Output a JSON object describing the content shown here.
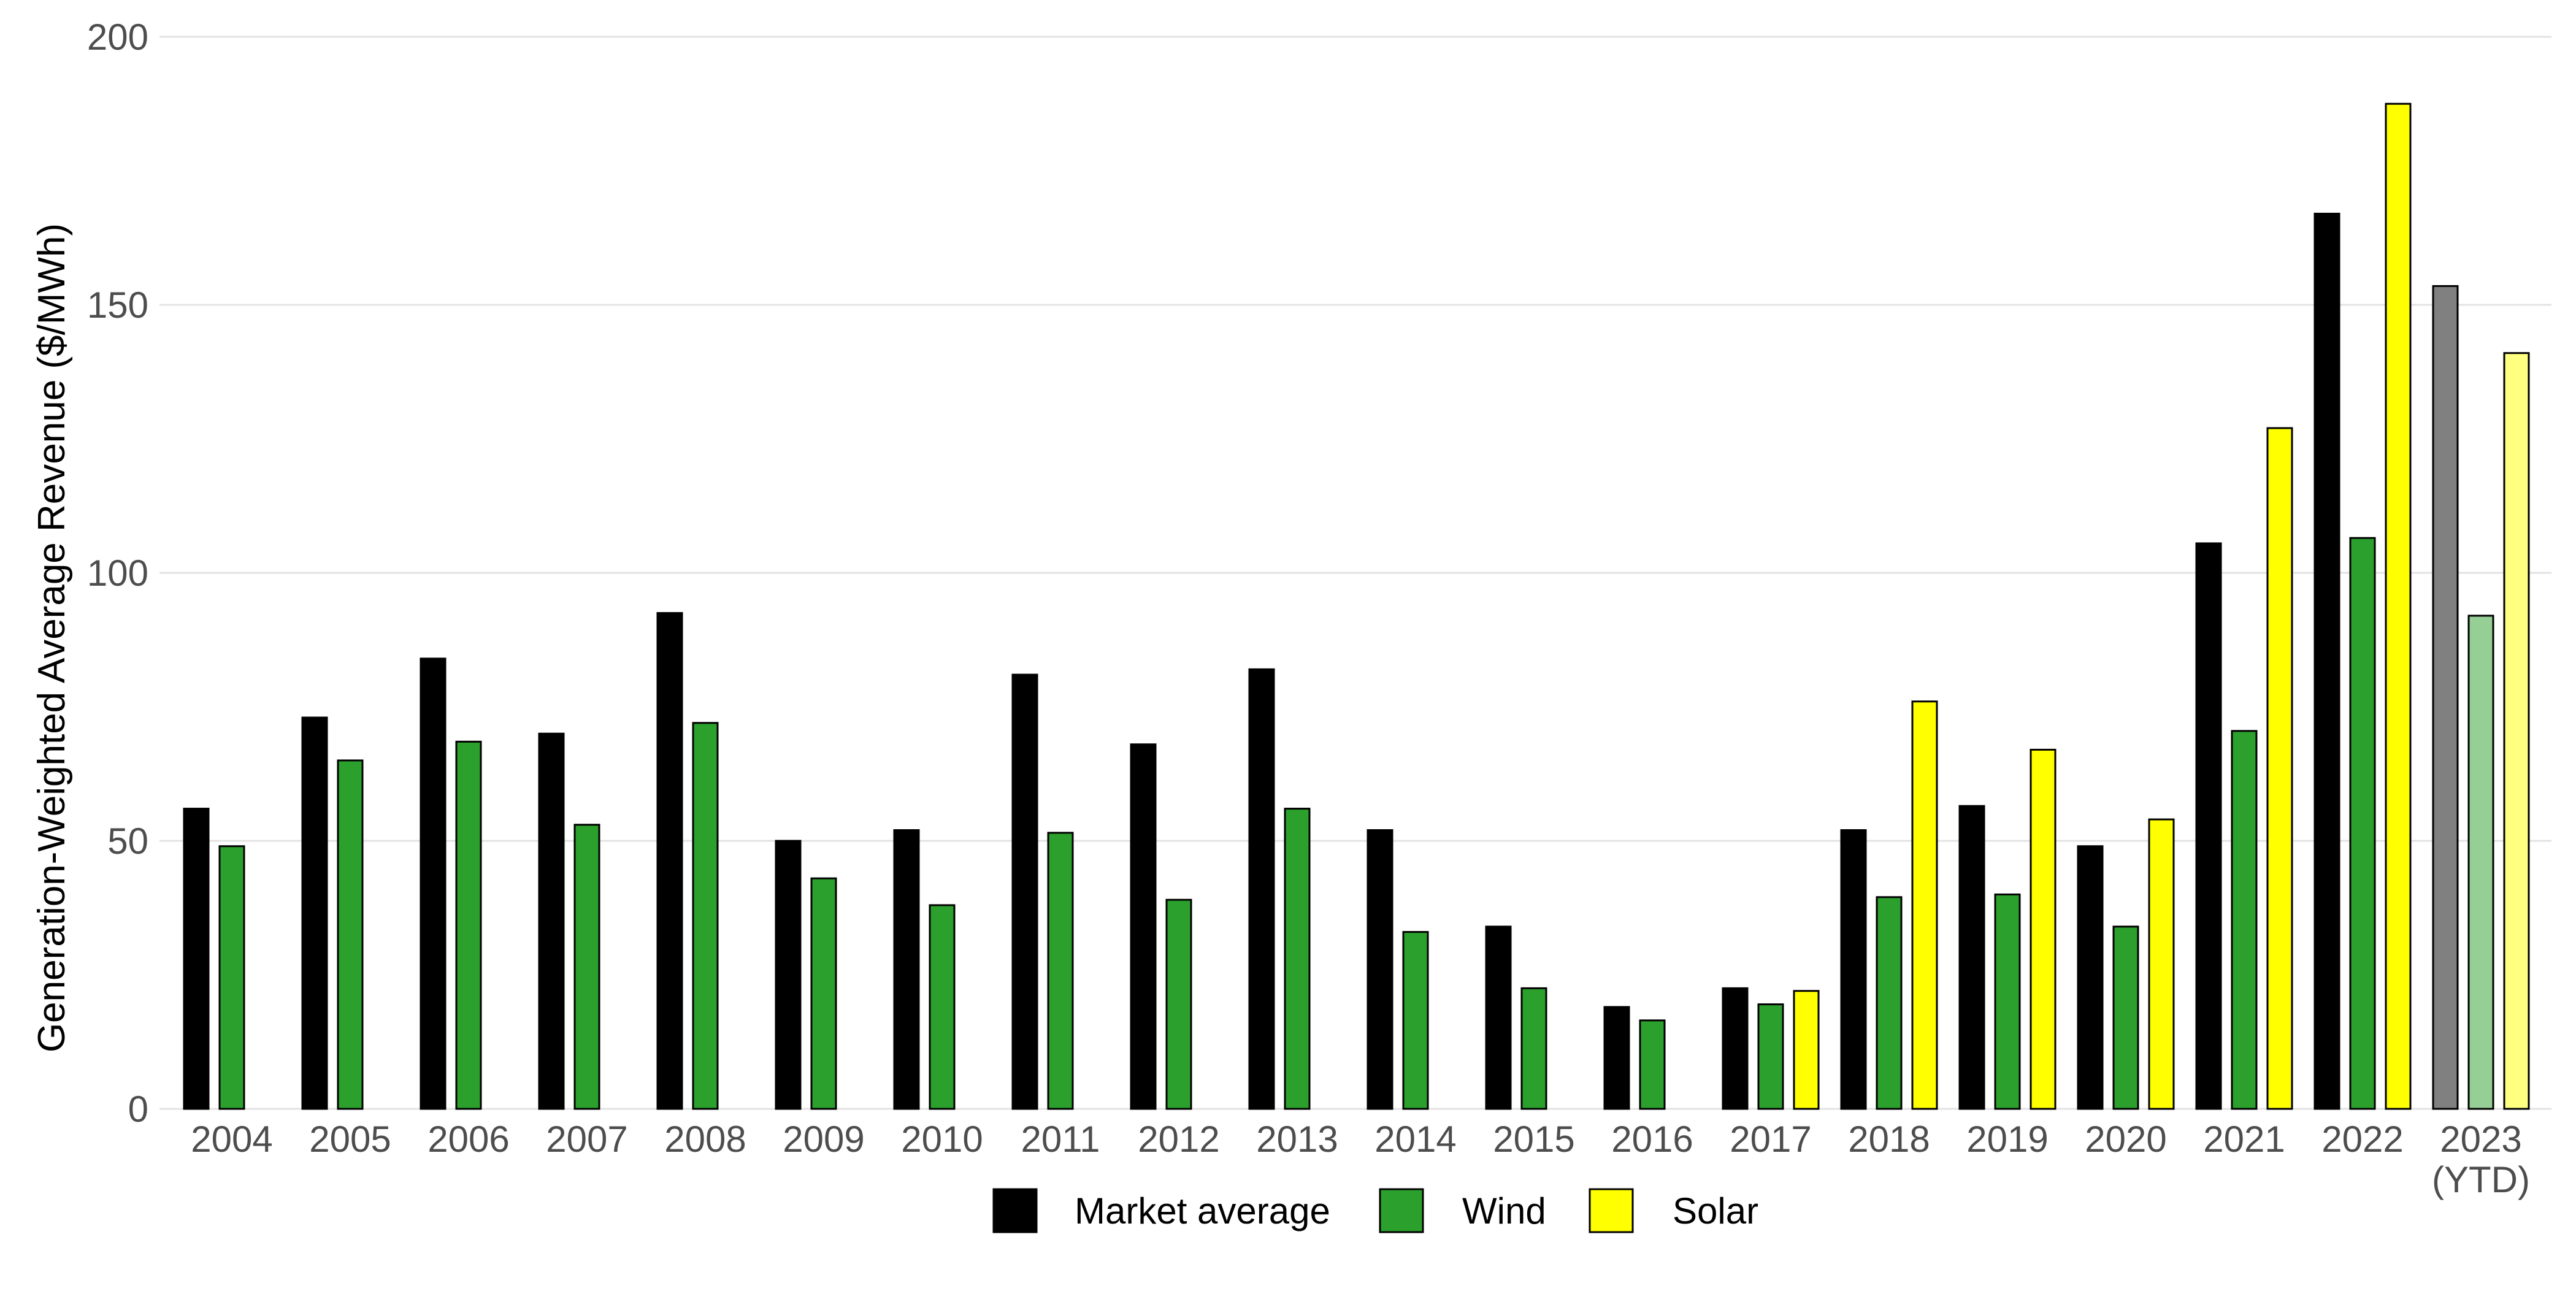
{
  "chart_data": {
    "type": "bar",
    "title": "",
    "xlabel": "",
    "ylabel": "Generation-Weighted Average Revenue ($/MWh)",
    "ylim": [
      0,
      200
    ],
    "yticks": [
      0,
      50,
      100,
      150,
      200
    ],
    "grid": "horizontal",
    "legend_position": "bottom",
    "categories": [
      "2004",
      "2005",
      "2006",
      "2007",
      "2008",
      "2009",
      "2010",
      "2011",
      "2012",
      "2013",
      "2014",
      "2015",
      "2016",
      "2017",
      "2018",
      "2019",
      "2020",
      "2021",
      "2022",
      "2023\n(YTD)"
    ],
    "category_labels": [
      [
        "2004"
      ],
      [
        "2005"
      ],
      [
        "2006"
      ],
      [
        "2007"
      ],
      [
        "2008"
      ],
      [
        "2009"
      ],
      [
        "2010"
      ],
      [
        "2011"
      ],
      [
        "2012"
      ],
      [
        "2013"
      ],
      [
        "2014"
      ],
      [
        "2015"
      ],
      [
        "2016"
      ],
      [
        "2017"
      ],
      [
        "2018"
      ],
      [
        "2019"
      ],
      [
        "2020"
      ],
      [
        "2021"
      ],
      [
        "2022"
      ],
      [
        "2023",
        "(YTD)"
      ]
    ],
    "series": [
      {
        "name": "Market average",
        "color": "#000000",
        "ytd_color": "#808080",
        "values": [
          56,
          73,
          84,
          70,
          92.5,
          50,
          52,
          81,
          68,
          82,
          52,
          34,
          19,
          22.5,
          52,
          56.5,
          49,
          105.5,
          167,
          153.5
        ]
      },
      {
        "name": "Wind",
        "color": "#2ca02c",
        "ytd_color": "#95cf95",
        "values": [
          49,
          65,
          68.5,
          53,
          72,
          43,
          38,
          51.5,
          39,
          56,
          33,
          22.5,
          16.5,
          19.5,
          39.5,
          40,
          34,
          70.5,
          106.5,
          92
        ]
      },
      {
        "name": "Solar",
        "color": "#ffff00",
        "ytd_color": "#ffff80",
        "values": [
          null,
          null,
          null,
          null,
          null,
          null,
          null,
          null,
          null,
          null,
          null,
          null,
          null,
          22,
          76,
          67,
          54,
          127,
          187.5,
          141
        ]
      }
    ],
    "highlight_category": "2023\n(YTD)"
  }
}
